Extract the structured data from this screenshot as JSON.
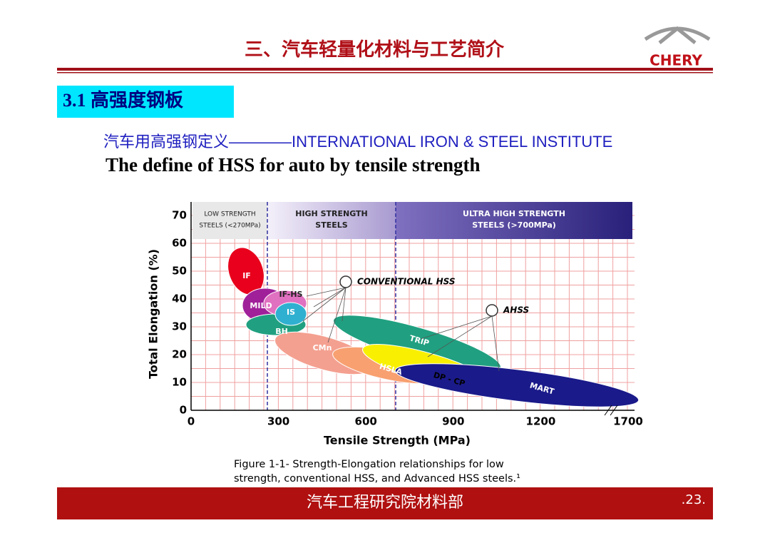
{
  "header": {
    "title": "三、汽车轻量化材料与工艺简介",
    "logo": "CHERY"
  },
  "section": "3.1 高强度钢板",
  "subtitle_cn": "汽车用高强钢定义",
  "subtitle_org": "————INTERNATIONAL IRON & STEEL INSTITUTE",
  "subtitle_en": "The define of HSS for auto by tensile strength",
  "figure": {
    "bands": [
      [
        "LOW STRENGTH",
        "STEELS (<270MPa)"
      ],
      [
        "HIGH STRENGTH",
        "STEELS"
      ],
      [
        "ULTRA HIGH STRENGTH",
        "STEELS (>700MPa)"
      ]
    ],
    "y_axis_label": "Total Elongation (%)",
    "x_axis_label": "Tensile Strength (MPa)",
    "y_tick_labels": [
      "0",
      "10",
      "20",
      "30",
      "40",
      "50",
      "60",
      "70"
    ],
    "x_tick_labels": [
      "0",
      "300",
      "600",
      "900",
      "1200",
      "1700"
    ],
    "regions": [
      "IF",
      "MILD",
      "IF-HS",
      "IS",
      "BH",
      "CMn",
      "HSLA",
      "TRIP",
      "DP - CP",
      "MART"
    ],
    "callouts": [
      "CONVENTIONAL HSS",
      "AHSS"
    ],
    "caption": [
      "Figure 1-1- Strength-Elongation relationships for low",
      "strength, conventional HSS, and Advanced HSS steels.¹"
    ]
  },
  "footer": {
    "text": "汽车工程研究院材料部",
    "page": ".23."
  }
}
